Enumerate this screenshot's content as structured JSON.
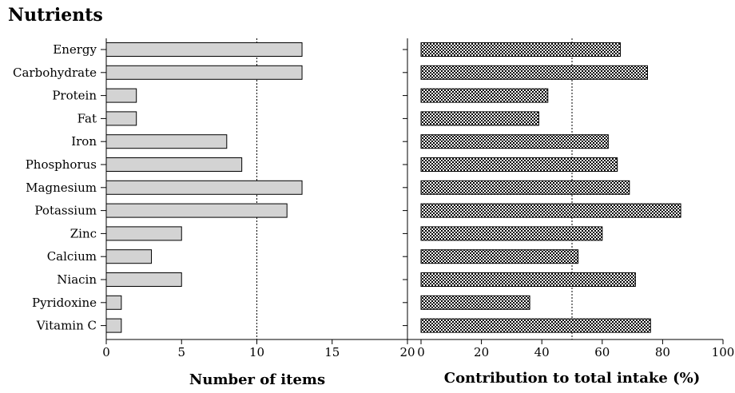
{
  "chart_data": [
    {
      "type": "bar",
      "orientation": "horizontal",
      "title": "Nutrients",
      "xlabel": "Number of items",
      "categories": [
        "Energy",
        "Carbohydrate",
        "Protein",
        "Fat",
        "Iron",
        "Phosphorus",
        "Magnesium",
        "Potassium",
        "Zinc",
        "Calcium",
        "Niacin",
        "Pyridoxine",
        "Vitamin C"
      ],
      "values": [
        13,
        13,
        2,
        2,
        8,
        9,
        13,
        12,
        5,
        3,
        5,
        1,
        1
      ],
      "xlim": [
        0,
        20
      ],
      "xticks": [
        "0",
        "5",
        "10",
        "15",
        "20"
      ],
      "reference_line": 10,
      "bar_color": "#d3d3d3",
      "bar_pattern": "solid"
    },
    {
      "type": "bar",
      "orientation": "horizontal",
      "xlabel": "Contribution to total intake (%)",
      "categories": [
        "Energy",
        "Carbohydrate",
        "Protein",
        "Fat",
        "Iron",
        "Phosphorus",
        "Magnesium",
        "Potassium",
        "Zinc",
        "Calcium",
        "Niacin",
        "Pyridoxine",
        "Vitamin C"
      ],
      "values": [
        66,
        75,
        42,
        39,
        62,
        65,
        69,
        86,
        60,
        52,
        71,
        36,
        76
      ],
      "xlim": [
        0,
        100
      ],
      "xticks": [
        "0",
        "20",
        "40",
        "60",
        "80",
        "100"
      ],
      "reference_line": 50,
      "bar_pattern": "checkered"
    }
  ]
}
